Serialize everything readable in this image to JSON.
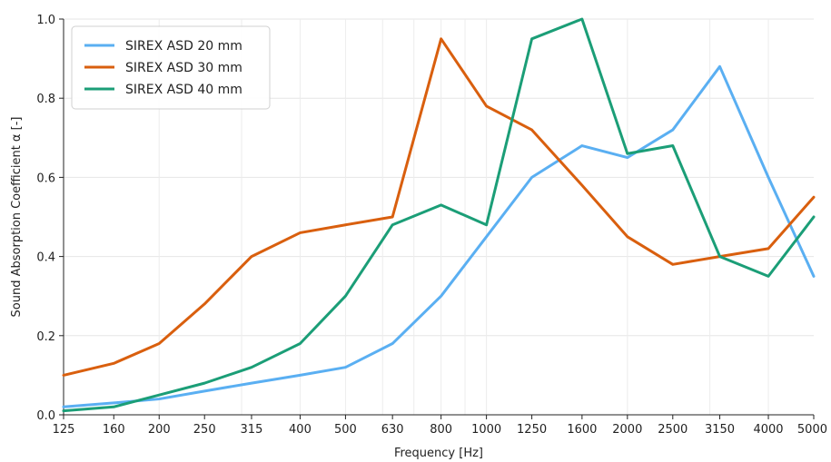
{
  "chart_data": {
    "type": "line",
    "x": [
      "125",
      "160",
      "200",
      "250",
      "315",
      "400",
      "500",
      "630",
      "800",
      "1000",
      "1250",
      "1600",
      "2000",
      "2500",
      "3150",
      "4000",
      "5000"
    ],
    "series": [
      {
        "name": "SIREX ASD 20 mm",
        "color": "#5aaff2",
        "values": [
          0.02,
          0.03,
          0.04,
          0.06,
          0.08,
          0.1,
          0.12,
          0.18,
          0.3,
          0.45,
          0.6,
          0.68,
          0.65,
          0.72,
          0.88,
          0.6,
          0.35
        ]
      },
      {
        "name": "SIREX ASD 30 mm",
        "color": "#d95f0e",
        "values": [
          0.1,
          0.13,
          0.18,
          0.28,
          0.4,
          0.46,
          0.48,
          0.5,
          0.95,
          0.78,
          0.72,
          0.58,
          0.45,
          0.38,
          0.4,
          0.42,
          0.55
        ]
      },
      {
        "name": "SIREX ASD 40 mm",
        "color": "#1b9e77",
        "values": [
          0.01,
          0.02,
          0.05,
          0.08,
          0.12,
          0.18,
          0.3,
          0.48,
          0.53,
          0.48,
          0.95,
          1.0,
          0.66,
          0.68,
          0.4,
          0.35,
          0.5
        ]
      }
    ],
    "xlabel": "Frequency [Hz]",
    "ylabel": "Sound Absorption Coefficient α [-]",
    "ylim": [
      0,
      1.0
    ],
    "yticks": [
      "0.0",
      "0.2",
      "0.4",
      "0.6",
      "0.8",
      "1.0"
    ],
    "x_scale": "log",
    "grid": true,
    "legend_position": "top-left"
  }
}
